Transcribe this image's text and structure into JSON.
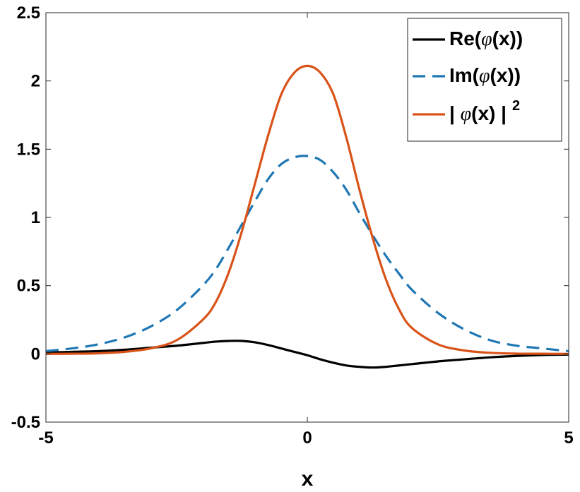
{
  "chart_data": {
    "type": "line",
    "xlabel": "x",
    "ylabel": "",
    "xlim": [
      -5,
      5
    ],
    "ylim": [
      -0.5,
      2.5
    ],
    "xticks": [
      -5,
      0,
      5
    ],
    "xtick_labels": [
      "-5",
      "0",
      "5"
    ],
    "yticks": [
      -0.5,
      0,
      0.5,
      1,
      1.5,
      2,
      2.5
    ],
    "ytick_labels": [
      "-0.5",
      "0",
      "0.5",
      "1",
      "1.5",
      "2",
      "2.5"
    ],
    "grid": false,
    "legend_position": "top-right",
    "x": [
      -5,
      -4.5,
      -4,
      -3.5,
      -3,
      -2.5,
      -2,
      -1.75,
      -1.5,
      -1.25,
      -1,
      -0.75,
      -0.5,
      -0.25,
      0,
      0.25,
      0.5,
      0.75,
      1,
      1.25,
      1.5,
      1.75,
      2,
      2.5,
      3,
      3.5,
      4,
      4.5,
      5
    ],
    "series": [
      {
        "name": "Re(φ(x))",
        "legend_prefix": "Re(",
        "legend_symbol": "φ",
        "legend_suffix": "(x))",
        "legend_sup": "",
        "color": "#000000",
        "style": "solid",
        "values": [
          0.01,
          0.015,
          0.02,
          0.03,
          0.045,
          0.06,
          0.08,
          0.09,
          0.095,
          0.095,
          0.085,
          0.065,
          0.04,
          0.015,
          -0.01,
          -0.04,
          -0.065,
          -0.085,
          -0.095,
          -0.1,
          -0.095,
          -0.085,
          -0.075,
          -0.055,
          -0.04,
          -0.025,
          -0.015,
          -0.008,
          -0.005
        ]
      },
      {
        "name": "Im(φ(x))",
        "legend_prefix": "Im(",
        "legend_symbol": "φ",
        "legend_suffix": "(x))",
        "legend_sup": "",
        "color": "#1f77b4",
        "style": "dashed",
        "values": [
          0.02,
          0.04,
          0.07,
          0.12,
          0.2,
          0.32,
          0.5,
          0.62,
          0.78,
          0.95,
          1.12,
          1.28,
          1.39,
          1.44,
          1.45,
          1.42,
          1.33,
          1.2,
          1.03,
          0.87,
          0.72,
          0.59,
          0.47,
          0.3,
          0.18,
          0.1,
          0.06,
          0.04,
          0.02
        ]
      },
      {
        "name": "| φ(x) |²",
        "legend_prefix": "| ",
        "legend_symbol": "φ",
        "legend_suffix": "(x) |",
        "legend_sup": "2",
        "color": "#d95319",
        "style": "solid",
        "values": [
          0.0,
          0.001,
          0.004,
          0.015,
          0.04,
          0.1,
          0.25,
          0.38,
          0.6,
          0.9,
          1.25,
          1.6,
          1.9,
          2.06,
          2.11,
          2.06,
          1.9,
          1.58,
          1.2,
          0.85,
          0.55,
          0.33,
          0.19,
          0.07,
          0.025,
          0.008,
          0.002,
          0.001,
          0.0
        ]
      }
    ]
  }
}
